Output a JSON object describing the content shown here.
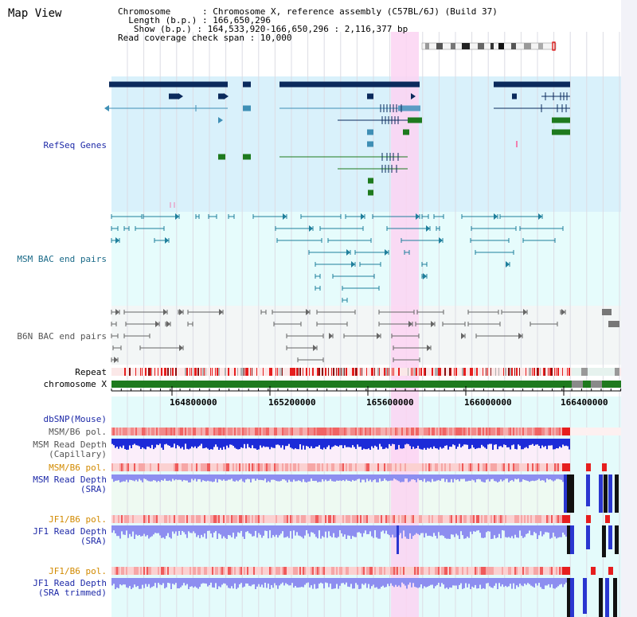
{
  "view_title": "Map View",
  "header": {
    "line1": "Chromosome      : Chromosome X, reference assembly (C57BL/6J) (Build 37)",
    "line2": "  Length (b.p.) : 166,650,296",
    "line3": "   Show (b.p.) : 164,533,920-166,650,296 : 2,116,377 bp",
    "line4": "Read coverage check span : 10,000"
  },
  "tracks": {
    "refseq": "RefSeq Genes",
    "msm_bac": "MSM BAC end pairs",
    "b6n_bac": "B6N BAC end pairs",
    "repeat": "Repeat",
    "chromosome": "chromosome X",
    "dbsnp": "dbSNP(Mouse)",
    "msm_pol1": "MSM/B6 pol.",
    "msm_depth_cap": "MSM Read Depth\n(Capillary)",
    "msm_pol2": "MSM/B6 pol.",
    "msm_depth_sra": "MSM Read Depth\n(SRA)",
    "jf1_pol1": "JF1/B6 pol.",
    "jf1_depth_sra": "JF1 Read Depth\n(SRA)",
    "jf1_pol2": "JF1/B6 pol.",
    "jf1_depth_trim": "JF1 Read Depth\n(SRA trimmed)"
  },
  "axis_ticks": [
    "164800000",
    "165200000",
    "165600000",
    "166000000",
    "166400000"
  ],
  "colors": {
    "refseq_bg": "#d9f1fb",
    "msm_bg": "#e6fcfc",
    "b6n_bg": "#f3f6f6",
    "highlight": "#fbd3f2",
    "gene_dark": "#0b2a5c",
    "gene_green": "#1e7a1e",
    "bac_teal": "#1f7f9c",
    "chrom_green": "#1e7a1e",
    "depth_blue": "#1c2bd8",
    "depth_light": "#8d8ef0",
    "pol_red": "#ef2d2d",
    "label_blue": "#1e2aa8",
    "label_orange": "#d28a00",
    "label_teal": "#1a6a88"
  }
}
